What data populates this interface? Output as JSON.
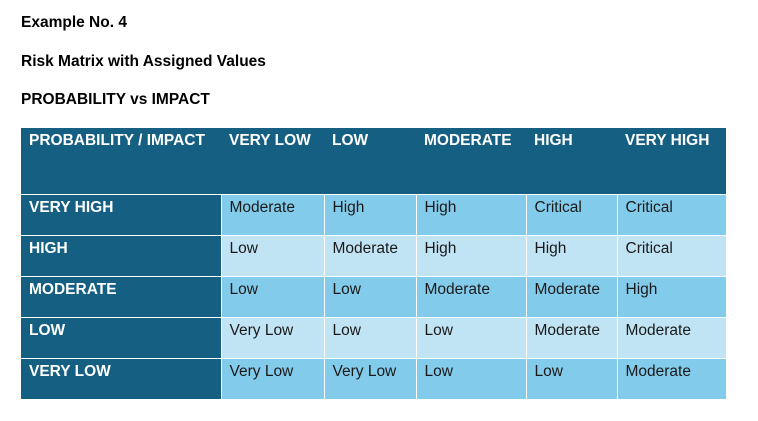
{
  "headings": {
    "example": "Example No. 4",
    "title": "Risk Matrix with Assigned Values",
    "subtitle": "PROBABILITY vs IMPACT"
  },
  "table": {
    "corner": "PROBABILITY / IMPACT",
    "columns": [
      "VERY LOW",
      "LOW",
      "MODERATE",
      "HIGH",
      "VERY HIGH"
    ],
    "rows": [
      {
        "label": "VERY HIGH",
        "cells": [
          "Moderate",
          "High",
          "High",
          "Critical",
          "Critical"
        ]
      },
      {
        "label": "HIGH",
        "cells": [
          "Low",
          "Moderate",
          "High",
          "High",
          "Critical"
        ]
      },
      {
        "label": "MODERATE",
        "cells": [
          "Low",
          "Low",
          "Moderate",
          "Moderate",
          "High"
        ]
      },
      {
        "label": "LOW",
        "cells": [
          "Very Low",
          "Low",
          "Low",
          "Moderate",
          "Moderate"
        ]
      },
      {
        "label": "VERY LOW",
        "cells": [
          "Very Low",
          "Very Low",
          "Low",
          "Low",
          "Moderate"
        ]
      }
    ]
  },
  "colors": {
    "header_bg": "#156082",
    "row_dark": "#83cbeb",
    "row_light": "#c1e4f5"
  }
}
